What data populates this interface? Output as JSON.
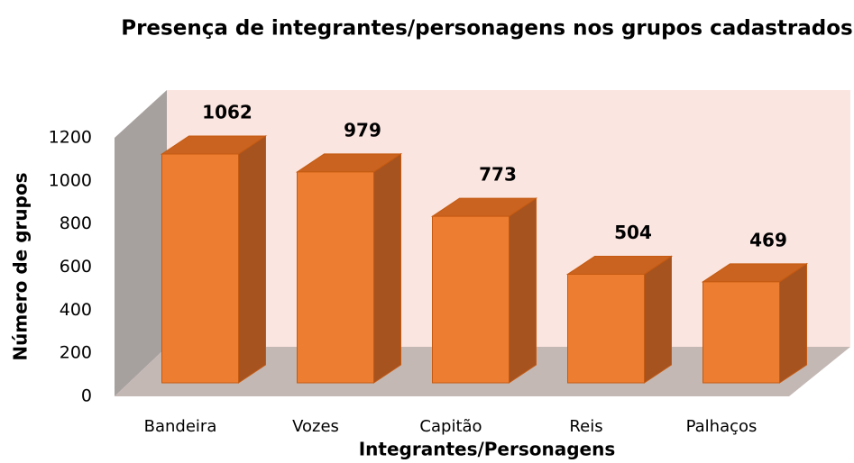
{
  "chart_data": {
    "type": "bar3d",
    "title": "Presença de integrantes/personagens nos grupos cadastrados",
    "x_label": "Integrantes/Personagens",
    "y_label": "Número de grupos",
    "categories": [
      "Bandeira",
      "Vozes",
      "Capitão",
      "Reis",
      "Palhaços"
    ],
    "values": [
      1062,
      979,
      773,
      504,
      469
    ],
    "color": "#ED7D31",
    "ylim": [
      0,
      1200
    ],
    "yticks": [
      0,
      200,
      400,
      600,
      800,
      1000,
      1200
    ]
  }
}
